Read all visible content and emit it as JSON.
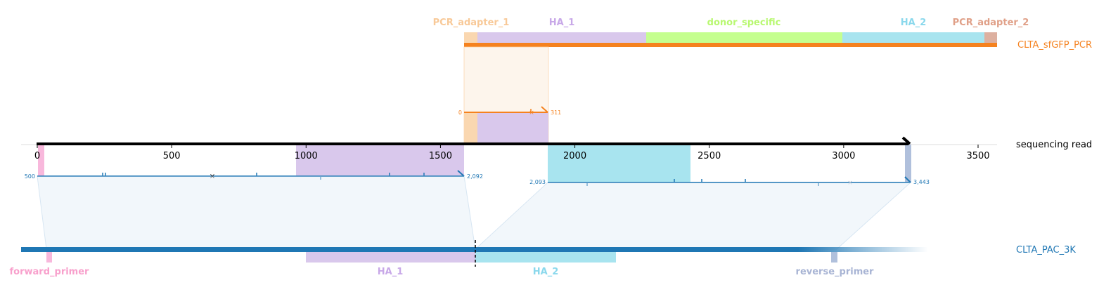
{
  "colors": {
    "pcr_adapter_1": "#fad7b0",
    "pcr_adapter_1_label": "#f8c998",
    "ha_1": "#d9c8ec",
    "ha_1_label": "#c8a8e8",
    "donor_specific": "#c5ff8f",
    "donor_specific_label": "#b8f870",
    "ha_2": "#a8e4ef",
    "ha_2_label": "#8ad8ec",
    "pcr_adapter_2": "#ddb0a0",
    "pcr_adapter_2_label": "#e0a088",
    "forward_primer": "#f8b8dc",
    "forward_primer_label": "#f8a0cc",
    "reverse_primer": "#b0c0dc",
    "reverse_primer_label": "#a8b4d4",
    "orange": "#f5821f",
    "blue": "#1f77b4",
    "black": "#000000"
  },
  "pcr_track": {
    "name": "CLTA_sfGFP_PCR",
    "features": [
      {
        "key": "pcr_adapter_1",
        "label": "PCR_adapter_1"
      },
      {
        "key": "ha_1",
        "label": "HA_1"
      },
      {
        "key": "donor_specific",
        "label": "donor_specific"
      },
      {
        "key": "ha_2",
        "label": "HA_2"
      },
      {
        "key": "pcr_adapter_2",
        "label": "PCR_adapter_2"
      }
    ],
    "alignment_start_label": "0",
    "alignment_end_label": "311"
  },
  "read_track": {
    "name": "sequencing read",
    "axis": {
      "min": 0,
      "max": 3500,
      "ticks": [
        "0",
        "500",
        "1000",
        "1500",
        "2000",
        "2500",
        "3000",
        "3500"
      ]
    },
    "alignment_1": {
      "start_label": "500",
      "end_label": "2,092"
    },
    "alignment_2": {
      "start_label": "2,093",
      "end_label": "3,443"
    }
  },
  "ref_track": {
    "name": "CLTA_PAC_3K",
    "features": [
      {
        "key": "forward_primer",
        "label": "forward_primer"
      },
      {
        "key": "ha_1",
        "label": "HA_1"
      },
      {
        "key": "ha_2",
        "label": "HA_2"
      },
      {
        "key": "reverse_primer",
        "label": "reverse_primer"
      }
    ]
  }
}
